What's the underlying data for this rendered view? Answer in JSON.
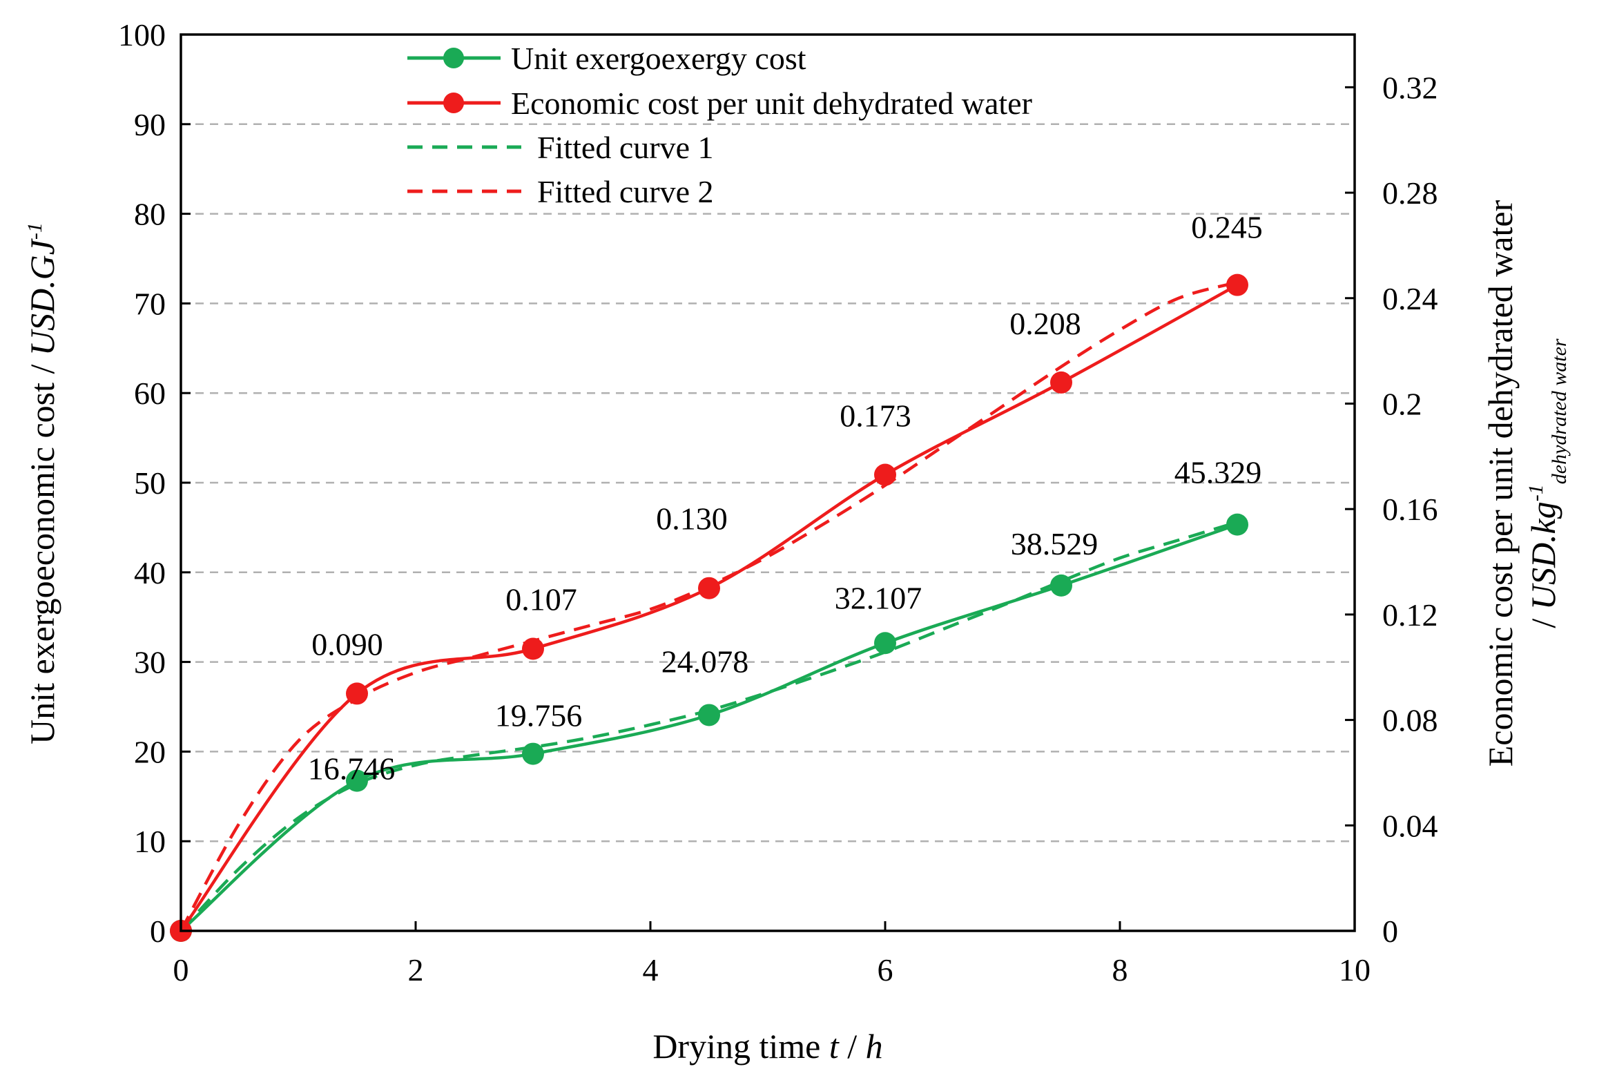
{
  "chart_data": {
    "type": "line",
    "x": [
      0,
      1.5,
      3,
      4.5,
      6,
      7.5,
      9
    ],
    "xlim": [
      0,
      10
    ],
    "xticks": [
      "0",
      "2",
      "4",
      "6",
      "8",
      "10"
    ],
    "xtick_values": [
      0,
      2,
      4,
      6,
      8,
      10
    ],
    "xlabel": {
      "prefix": "Drying time ",
      "var": "t",
      "sep": " / ",
      "unit": "h"
    },
    "y_left": {
      "lim": [
        0,
        100
      ],
      "tick_values": [
        0,
        10,
        20,
        30,
        40,
        50,
        60,
        70,
        80,
        90,
        100
      ],
      "ticks": [
        "0",
        "10",
        "20",
        "30",
        "40",
        "50",
        "60",
        "70",
        "80",
        "90",
        "100"
      ],
      "label": {
        "main": "Unit exergoeconomic cost / ",
        "unit": "USD.GJ",
        "sup": "-1"
      }
    },
    "y_right": {
      "lim": [
        0,
        0.34
      ],
      "tick_values": [
        0,
        0.04,
        0.08,
        0.12,
        0.16,
        0.2,
        0.24,
        0.28,
        0.32
      ],
      "ticks": [
        "0",
        "0.04",
        "0.08",
        "0.12",
        "0.16",
        "0.2",
        "0.24",
        "0.28",
        "0.32"
      ],
      "label_line1": "Economic cost per unit dehydrated water",
      "label_line2": {
        "prefix": "/ ",
        "unit": "USD.kg",
        "sup": "-1",
        "sub": "dehydrated water"
      }
    },
    "grid": "horizontal-dashed",
    "legend_position": "top-left",
    "series": [
      {
        "name": "Unit exergoexergy cost",
        "axis": "left",
        "color": "#1aaa55",
        "style": "solid-marker",
        "values": [
          0,
          16.746,
          19.756,
          24.078,
          32.107,
          38.529,
          45.329
        ],
        "labels": [
          "",
          "16.746",
          "19.756",
          "24.078",
          "32.107",
          "38.529",
          "45.329"
        ]
      },
      {
        "name": "Economic cost per unit dehydrated water",
        "axis": "right",
        "color": "#ee1c1c",
        "style": "solid-marker",
        "values": [
          0,
          0.09,
          0.107,
          0.13,
          0.173,
          0.208,
          0.245
        ],
        "labels": [
          "",
          "0.090",
          "0.107",
          "0.130",
          "0.173",
          "0.208",
          "0.245"
        ]
      },
      {
        "name": "Fitted curve 1",
        "axis": "left",
        "color": "#1aaa55",
        "style": "dashed",
        "x": [
          0,
          0.5,
          1,
          1.5,
          2,
          2.5,
          3,
          3.5,
          4,
          4.5,
          5,
          5.5,
          6,
          6.5,
          7,
          7.5,
          8,
          8.5,
          9
        ],
        "values": [
          0,
          7.0,
          12.6,
          16.4,
          18.5,
          19.6,
          20.5,
          21.6,
          23.0,
          24.6,
          26.6,
          28.8,
          31.1,
          33.7,
          36.3,
          39.0,
          41.6,
          43.6,
          45.6
        ]
      },
      {
        "name": "Fitted curve 2",
        "axis": "right",
        "color": "#ee1c1c",
        "style": "dashed",
        "x": [
          0,
          0.5,
          1,
          1.5,
          2,
          2.5,
          3,
          3.5,
          4,
          4.5,
          5,
          5.5,
          6,
          6.5,
          7,
          7.5,
          8,
          8.5,
          9
        ],
        "values": [
          0,
          0.041,
          0.072,
          0.088,
          0.098,
          0.104,
          0.11,
          0.116,
          0.122,
          0.131,
          0.142,
          0.155,
          0.169,
          0.184,
          0.199,
          0.214,
          0.228,
          0.24,
          0.246
        ]
      }
    ]
  }
}
